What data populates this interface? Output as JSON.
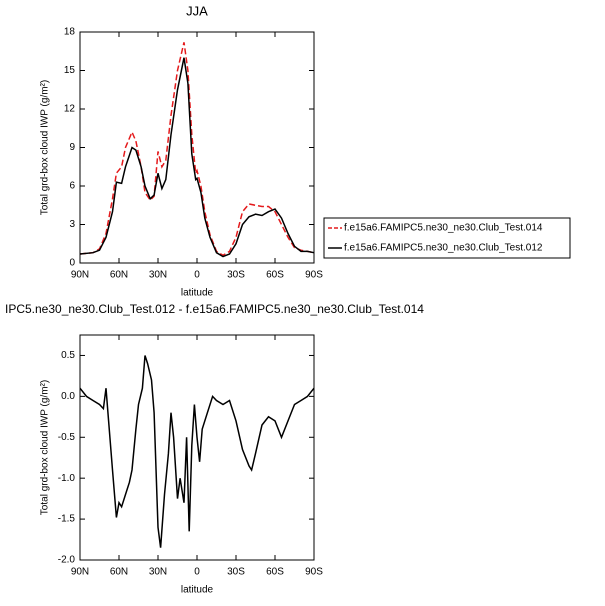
{
  "chart_data": [
    {
      "type": "line",
      "title": "JJA",
      "xlabel": "latitude",
      "ylabel": "Total grd-box cloud IWP (g/m²)",
      "x": [
        90,
        80,
        75,
        70,
        65,
        62,
        58,
        55,
        50,
        47,
        43,
        40,
        36,
        33,
        30,
        27,
        24,
        20,
        15,
        10,
        7,
        4,
        1,
        0,
        -3,
        -6,
        -10,
        -15,
        -20,
        -25,
        -30,
        -35,
        -40,
        -45,
        -50,
        -55,
        -60,
        -65,
        -70,
        -75,
        -80,
        -85,
        -90
      ],
      "series": [
        {
          "name": "f.e15a6.FAMIPC5.ne30_ne30.Club_Test.014",
          "color": "#e41a1c",
          "line_style": "dashed",
          "values": [
            0.7,
            0.8,
            1.1,
            2.3,
            5.0,
            7.0,
            7.5,
            9.0,
            10.2,
            9.5,
            7.5,
            5.5,
            4.9,
            5.2,
            8.7,
            7.5,
            8.0,
            11.5,
            15,
            17.2,
            15,
            10,
            7.0,
            7.2,
            6.0,
            4.0,
            2.2,
            0.9,
            0.6,
            0.9,
            2.0,
            4.0,
            4.6,
            4.5,
            4.4,
            4.4,
            4.0,
            3.0,
            2.0,
            1.2,
            1.0,
            0.9,
            0.8
          ]
        },
        {
          "name": "f.e15a6.FAMIPC5.ne30_ne30.Club_Test.012",
          "color": "#000000",
          "line_style": "solid",
          "values": [
            0.7,
            0.8,
            1.0,
            2.0,
            4.0,
            6.3,
            6.2,
            7.5,
            9.0,
            8.8,
            7.5,
            6.0,
            5.0,
            5.3,
            7.0,
            5.8,
            6.5,
            10,
            13.5,
            16.0,
            14,
            8.5,
            6.5,
            6.6,
            5.5,
            3.5,
            2.0,
            0.8,
            0.5,
            0.7,
            1.5,
            3.0,
            3.6,
            3.8,
            3.7,
            4.0,
            4.2,
            3.5,
            2.3,
            1.3,
            0.9,
            0.9,
            0.8
          ]
        }
      ],
      "xlim": [
        90,
        -90
      ],
      "xticks": [
        {
          "value": 90,
          "label": "90N"
        },
        {
          "value": 60,
          "label": "60N"
        },
        {
          "value": 30,
          "label": "30N"
        },
        0,
        {
          "value": -30,
          "label": "30S"
        },
        {
          "value": -60,
          "label": "60S"
        },
        {
          "value": -90,
          "label": "90S"
        }
      ],
      "ylim": [
        0,
        18
      ],
      "yticks": [
        0,
        3,
        6,
        9,
        12,
        15,
        18
      ],
      "legend": "right"
    },
    {
      "type": "line",
      "title": "IPC5.ne30_ne30.Club_Test.012 - f.e15a6.FAMIPC5.ne30_ne30.Club_Test.014",
      "xlabel": "latitude",
      "ylabel": "Total grd-box cloud IWP (g/m²)",
      "x": [
        90,
        85,
        80,
        75,
        72,
        70,
        68,
        65,
        62,
        60,
        58,
        55,
        52,
        50,
        47,
        45,
        42,
        40,
        38,
        35,
        33,
        30,
        28,
        25,
        22,
        20,
        18,
        15,
        13,
        10,
        8,
        6,
        4,
        2,
        0,
        -2,
        -4,
        -8,
        -12,
        -15,
        -20,
        -25,
        -30,
        -35,
        -40,
        -42,
        -45,
        -50,
        -55,
        -60,
        -65,
        -70,
        -75,
        -80,
        -85,
        -90
      ],
      "values": [
        0.1,
        0.0,
        -0.05,
        -0.1,
        -0.15,
        0.1,
        -0.3,
        -0.9,
        -1.48,
        -1.3,
        -1.35,
        -1.2,
        -1.05,
        -0.9,
        -0.4,
        -0.1,
        0.1,
        0.5,
        0.4,
        0.2,
        -0.2,
        -1.6,
        -1.85,
        -1.2,
        -0.7,
        -0.2,
        -0.5,
        -1.25,
        -1.0,
        -1.3,
        -0.5,
        -1.65,
        -0.6,
        -0.1,
        -0.5,
        -0.8,
        -0.4,
        -0.2,
        0.0,
        -0.05,
        -0.1,
        -0.05,
        -0.3,
        -0.65,
        -0.85,
        -0.9,
        -0.7,
        -0.35,
        -0.25,
        -0.3,
        -0.5,
        -0.3,
        -0.1,
        -0.05,
        0.0,
        0.1
      ],
      "color": "#000000",
      "xlim": [
        90,
        -90
      ],
      "xticks": [
        {
          "value": 90,
          "label": "90N"
        },
        {
          "value": 60,
          "label": "60N"
        },
        {
          "value": 30,
          "label": "30N"
        },
        0,
        {
          "value": -30,
          "label": "30S"
        },
        {
          "value": -60,
          "label": "60S"
        },
        {
          "value": -90,
          "label": "90S"
        }
      ],
      "ylim": [
        -2.0,
        0.75
      ],
      "yticks": [
        {
          "value": -2.0,
          "label": "-2.0"
        },
        -1.5,
        {
          "value": -1.0,
          "label": "-1.0"
        },
        -0.5,
        {
          "value": 0,
          "label": "0.0"
        },
        0.5
      ]
    }
  ]
}
